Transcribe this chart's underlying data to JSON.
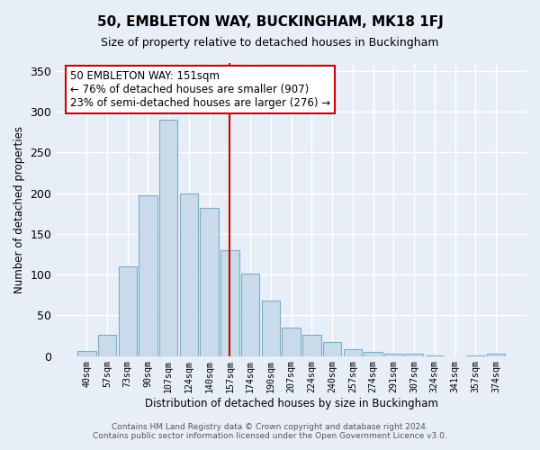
{
  "title": "50, EMBLETON WAY, BUCKINGHAM, MK18 1FJ",
  "subtitle": "Size of property relative to detached houses in Buckingham",
  "xlabel": "Distribution of detached houses by size in Buckingham",
  "ylabel": "Number of detached properties",
  "categories": [
    "40sqm",
    "57sqm",
    "73sqm",
    "90sqm",
    "107sqm",
    "124sqm",
    "140sqm",
    "157sqm",
    "174sqm",
    "190sqm",
    "207sqm",
    "224sqm",
    "240sqm",
    "257sqm",
    "274sqm",
    "291sqm",
    "307sqm",
    "324sqm",
    "341sqm",
    "357sqm",
    "374sqm"
  ],
  "values": [
    6,
    26,
    110,
    197,
    290,
    200,
    182,
    130,
    101,
    68,
    35,
    26,
    17,
    8,
    5,
    3,
    3,
    1,
    0,
    1,
    3
  ],
  "bar_color": "#c9daea",
  "bar_edge_color": "#7aaec8",
  "vline_index": 7,
  "annotation_text": "50 EMBLETON WAY: 151sqm\n← 76% of detached houses are smaller (907)\n23% of semi-detached houses are larger (276) →",
  "annotation_box_color": "#ffffff",
  "annotation_box_edge": "#cc0000",
  "ylim": [
    0,
    360
  ],
  "yticks": [
    0,
    50,
    100,
    150,
    200,
    250,
    300,
    350
  ],
  "background_color": "#e8eef8",
  "grid_color": "#ffffff",
  "fig_background": "#e8eef8",
  "footer_line1": "Contains HM Land Registry data © Crown copyright and database right 2024.",
  "footer_line2": "Contains public sector information licensed under the Open Government Licence v3.0."
}
